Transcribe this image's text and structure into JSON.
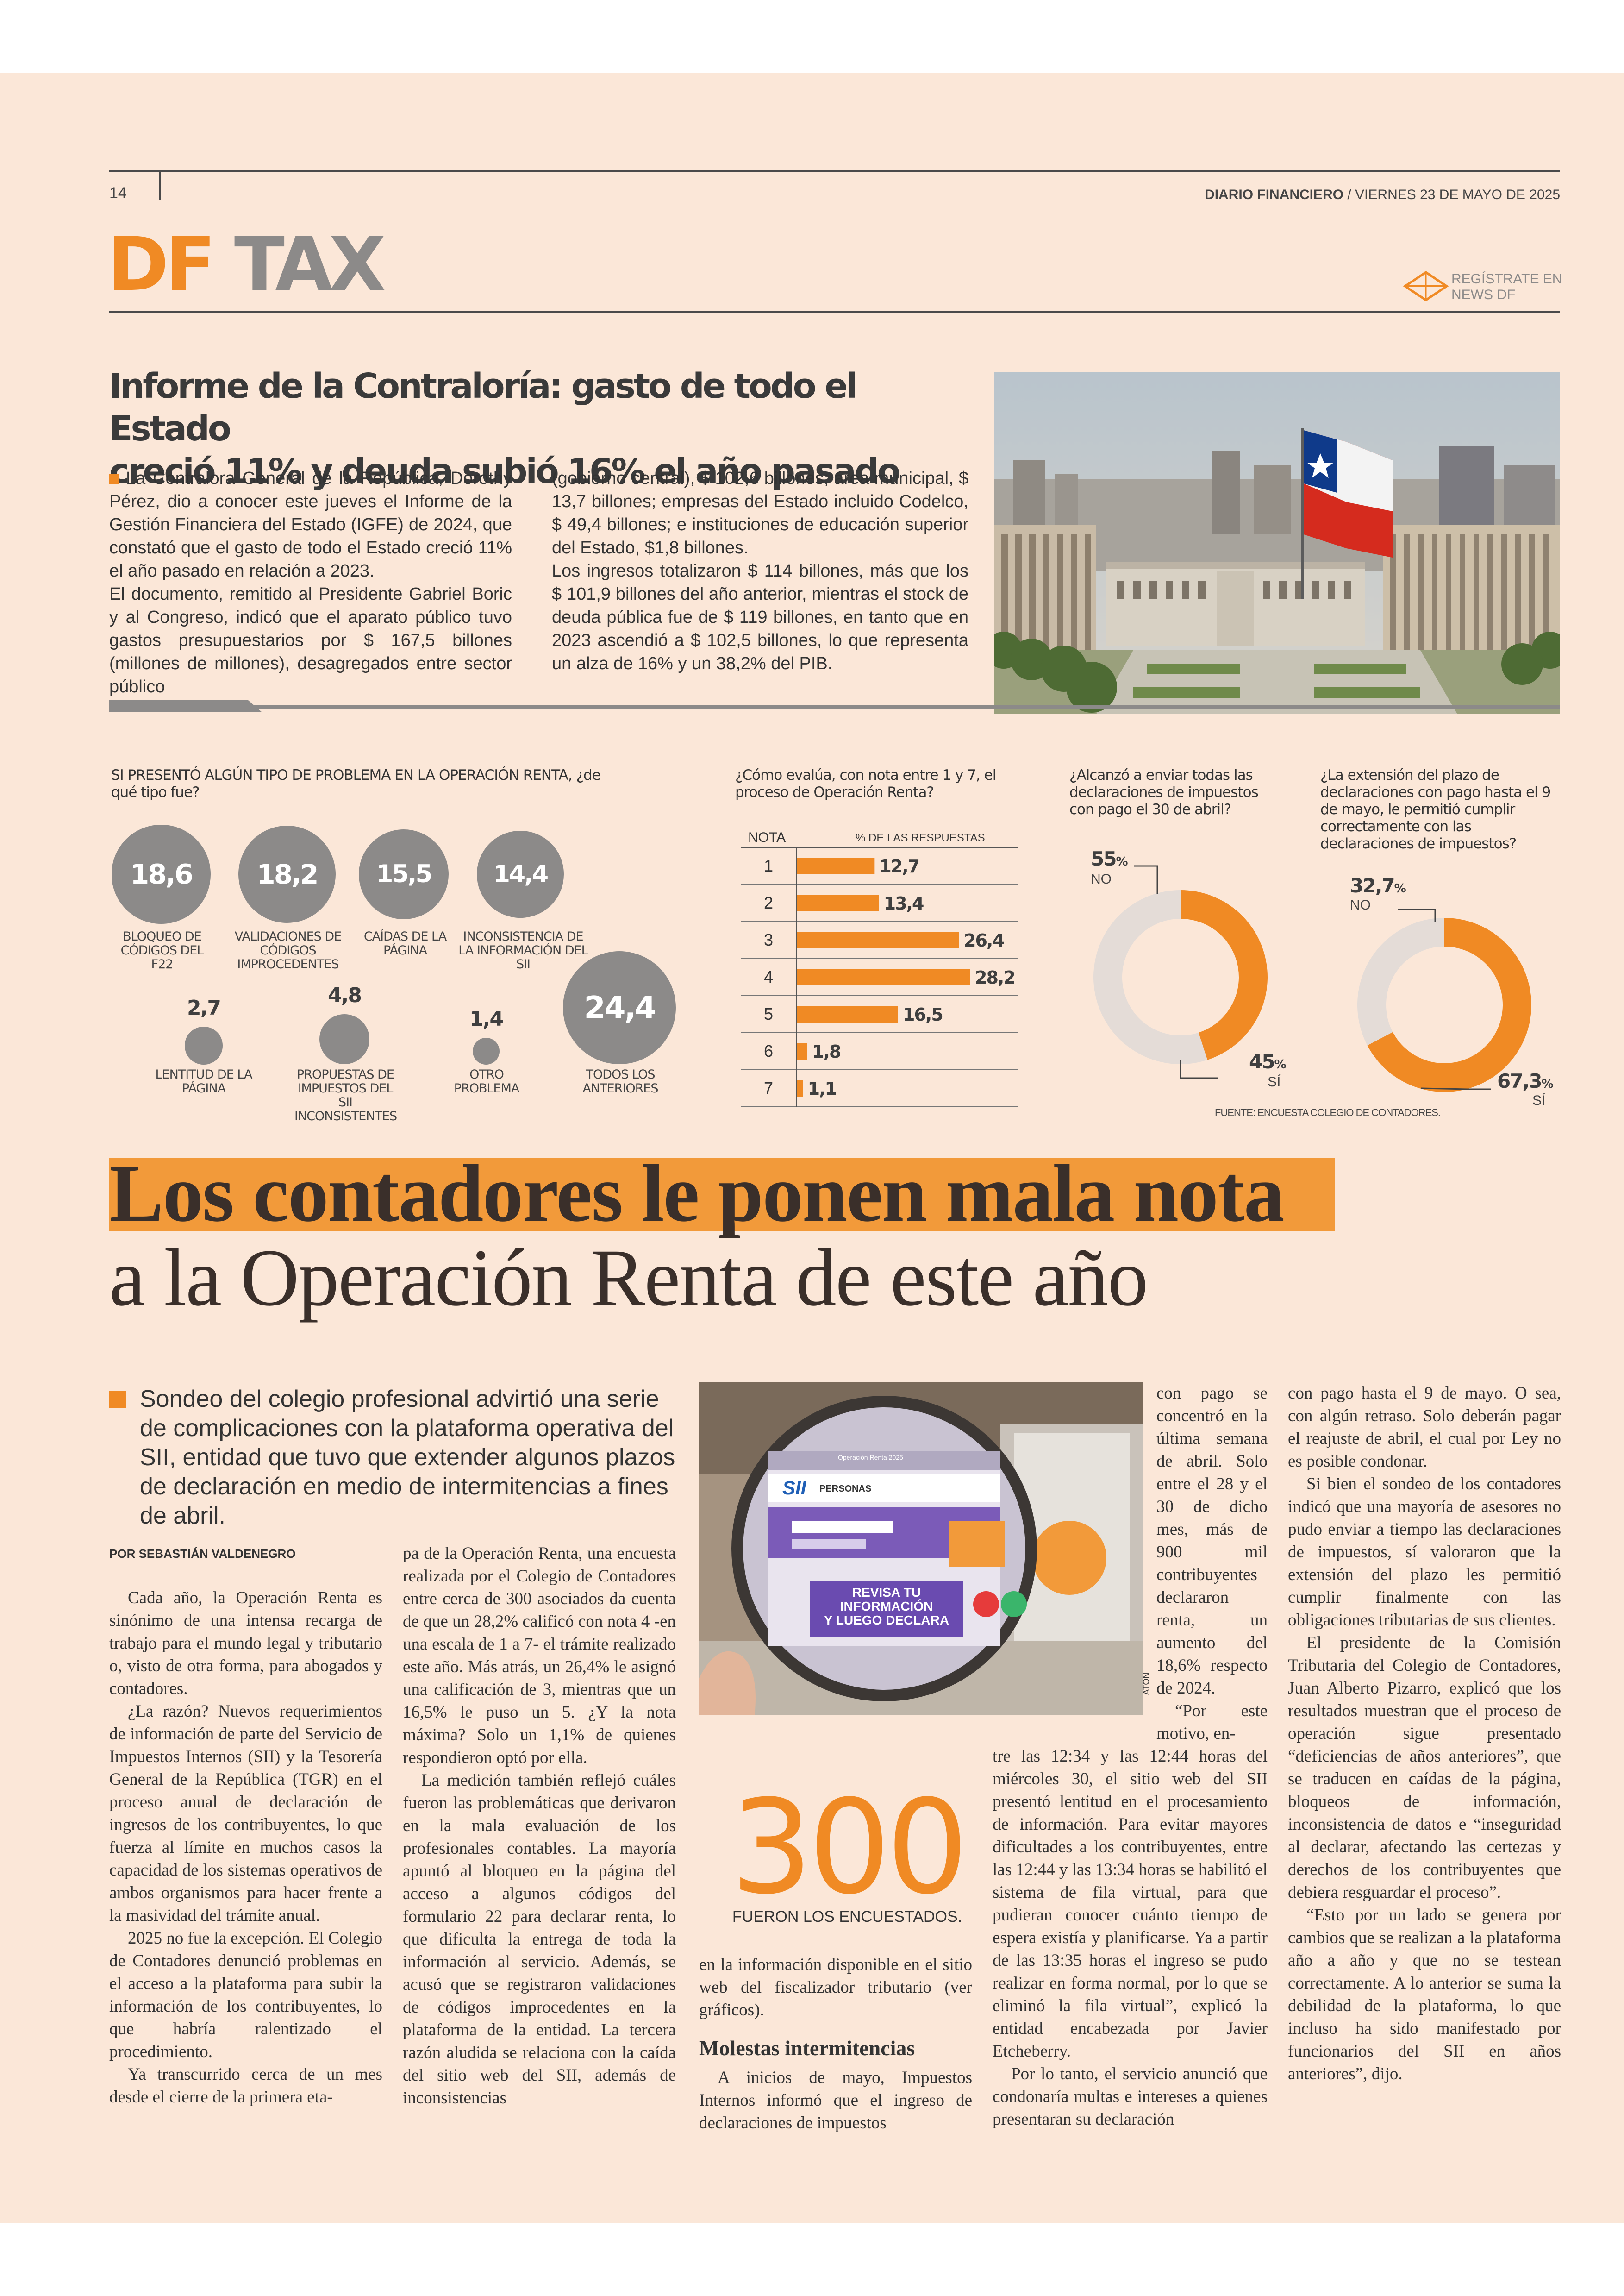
{
  "header": {
    "page_number": "14",
    "publication": "DIARIO FINANCIERO",
    "date": "/ VIERNES 23 DE MAYO DE 2025",
    "section_logo_df": "DF",
    "section_logo_tax": "TAX",
    "register_line1": "REGÍSTRATE EN",
    "register_line2": "NEWS DF"
  },
  "brief": {
    "title_line1": "Informe de la Contraloría: gasto de todo el Estado",
    "title_line2": "creció 11% y deuda subió 16% el año pasado",
    "col1": "La Contralora General de la República, Dorothy Pérez, dio a conocer este jueves el Informe de la Gestión Financiera del Estado (IGFE) de 2024, que constató que el gasto de todo el Estado creció 11% el año pasado en relación a 2023.",
    "col1b": "El documento, remitido al Presidente Gabriel Boric y al Congreso, indicó que el aparato público tuvo gastos presupuestarios por $ 167,5 billones (millones de millones), desagregados entre sector público",
    "col2": "(gobierno central), $ 102,6 billones; área municipal, $ 13,7 billones; empresas del Estado incluido Codelco, $ 49,4 billones; e instituciones de educación superior del Estado, $1,8 billones.",
    "col2b": "Los ingresos totalizaron $ 114 billones, más que los $ 101,9 billones del año anterior, mientras el stock de deuda pública fue de $ 119 billones, en tanto que en 2023 ascendió a $ 102,5 billones, lo que representa un alza de 16% y un 38,2% del PIB."
  },
  "infographic": {
    "problems": {
      "title": "SI PRESENTÓ ALGÚN TIPO DE PROBLEMA EN LA OPERACIÓN RENTA, ¿de qué tipo fue?",
      "items": [
        {
          "value": "18,6",
          "label": "BLOQUEO DE CÓDIGOS DEL F22"
        },
        {
          "value": "18,2",
          "label": "VALIDACIONES DE CÓDIGOS IMPROCEDENTES"
        },
        {
          "value": "15,5",
          "label": "CAÍDAS DE LA PÁGINA"
        },
        {
          "value": "14,4",
          "label": "INCONSISTENCIA DE LA INFORMACIÓN DEL SII"
        },
        {
          "value": "2,7",
          "label": "LENTITUD DE LA PÁGINA"
        },
        {
          "value": "4,8",
          "label": "PROPUESTAS DE IMPUESTOS DEL SII INCONSISTENTES"
        },
        {
          "value": "1,4",
          "label": "OTRO PROBLEMA"
        },
        {
          "value": "24,4",
          "label": "TODOS LOS ANTERIORES"
        }
      ]
    },
    "grades": {
      "title": "¿Cómo evalúa, con nota entre 1 y 7, el proceso de Operación Renta?",
      "col_note": "NOTA",
      "col_pct": "% DE LAS RESPUESTAS"
    },
    "april": {
      "title": "¿Alcanzó a enviar todas las declaraciones de impuestos con pago el 30 de abril?",
      "no_value": "55",
      "no_label": "NO",
      "yes_value": "45",
      "yes_label": "SÍ",
      "pct": "%"
    },
    "extension": {
      "title": "¿La extensión del plazo de declaraciones con pago hasta el 9 de mayo, le permitió cumplir correctamente con las declaraciones de impuestos?",
      "no_value": "32,7",
      "no_label": "NO",
      "yes_value": "67,3",
      "yes_label": "SÍ",
      "pct": "%"
    },
    "source": "FUENTE: ENCUESTA COLEGIO DE CONTADORES."
  },
  "chart_data": [
    {
      "type": "bar",
      "title": "¿Cómo evalúa, con nota entre 1 y 7, el proceso de Operación Renta?",
      "categories": [
        "1",
        "2",
        "3",
        "4",
        "5",
        "6",
        "7"
      ],
      "values": [
        12.7,
        13.4,
        26.4,
        28.2,
        16.5,
        1.8,
        1.1
      ],
      "value_labels": [
        "12,7",
        "13,4",
        "26,4",
        "28,2",
        "16,5",
        "1,8",
        "1,1"
      ],
      "orientation": "horizontal",
      "xlabel": "% DE LAS RESPUESTAS",
      "ylabel": "NOTA",
      "color": "#f08a24"
    },
    {
      "type": "pie",
      "title": "¿Alcanzó a enviar todas las declaraciones de impuestos con pago el 30 de abril?",
      "labels": [
        "NO",
        "SÍ"
      ],
      "values": [
        55,
        45
      ],
      "colors": [
        "#e4dcd7",
        "#f08a24"
      ]
    },
    {
      "type": "pie",
      "title": "¿La extensión del plazo de declaraciones con pago hasta el 9 de mayo, le permitió cumplir correctamente con las declaraciones de impuestos?",
      "labels": [
        "NO",
        "SÍ"
      ],
      "values": [
        32.7,
        67.3
      ],
      "colors": [
        "#e4dcd7",
        "#f08a24"
      ]
    }
  ],
  "article": {
    "headline1": "Los contadores le ponen mala nota",
    "headline2": "a la Operación Renta de este año",
    "deck": "Sondeo del colegio profesional advirtió una serie de complicaciones con la plataforma operativa del SII, entidad que tuvo que extender algunos plazos de declaración en medio de intermitencias a fines de abril.",
    "byline": "POR SEBASTIÁN VALDENEGRO",
    "col1": [
      "Cada año, la Operación Renta es sinónimo de una intensa recarga de trabajo para el mundo legal y tributario o, visto de otra forma, para abogados y contadores.",
      "¿La razón? Nuevos requerimientos de información de parte del Servicio de Impuestos Internos (SII) y la Tesorería General de la República (TGR) en el proceso anual de declaración de ingresos de los contribuyentes, lo que fuerza al límite en muchos casos la capacidad de los sistemas operativos de ambos organismos para hacer frente a la masividad del trámite anual.",
      "2025 no fue la excepción. El Colegio de Contadores denunció problemas en el acceso a la plataforma para subir la información de los contribuyentes, lo que habría ralentizado el procedimiento.",
      "Ya transcurrido cerca de un mes desde el cierre de la primera eta-"
    ],
    "col2": [
      "pa de la Operación Renta, una encuesta realizada por el Colegio de Contadores entre cerca de 300 asociados da cuenta de que un 28,2% calificó con nota 4 -en una escala de 1 a 7- el trámite realizado este año. Más atrás, un 26,4% le asignó una calificación de 3, mientras que un 16,5% le puso un 5. ¿Y la nota máxima? Solo un 1,1% de quienes respondieron optó por ella.",
      "La medición también reflejó cuáles fueron las problemáticas que derivaron en la mala evaluación de los profesionales contables. La mayoría apuntó al bloqueo en la página del acceso a algunos códigos del formulario 22 para declarar renta, lo que dificulta la entrega de toda la información al servicio. Además, se acusó que se registraron validaciones de códigos improcedentes en la plataforma de la entidad. La tercera razón aludida se relaciona con la caída del sitio web del SII, además de inconsistencias"
    ],
    "col3": "en la información disponible en el sitio web del fiscalizador tributario (ver gráficos).",
    "subhead": "Molestas intermitencias",
    "col3b": "A inicios de mayo, Impuestos Internos informó que el ingreso de declaraciones de impuestos",
    "col4a": "con pago se concentró en la última semana de abril. Solo entre el 28 y el 30 de dicho mes, más de 900 mil contribuyentes declararon renta, un aumento del 18,6% respecto de 2024.",
    "col4a2": "“Por este motivo, en-",
    "col4": [
      "tre las 12:34 y las 12:44 horas del miércoles 30, el sitio web del SII presentó lentitud en el procesamiento de información. Para evitar mayores dificultades a los contribuyentes, entre las 12:44 y las 13:34 horas se habilitó el sistema de fila virtual, para que pudieran conocer cuánto tiempo de espera existía y planificarse. Ya a partir de las 13:35 horas el ingreso se pudo realizar en forma normal, por lo que se eliminó la fila virtual”, explicó la entidad encabezada por Javier Etcheberry.",
      "Por lo tanto, el servicio anunció que condonaría multas e intereses a quienes presentaran su declaración"
    ],
    "col5": [
      "con pago hasta el 9 de mayo. O sea, con algún retraso. Solo deberán pagar el reajuste de abril, el cual por Ley no es posible condonar.",
      "Si bien el sondeo de los contadores indicó que una mayoría de asesores no pudo enviar a tiempo las declaraciones de impuestos, sí valoraron que la extensión del plazo les permitió cumplir finalmente con las obligaciones tributarias de sus clientes.",
      "El presidente de la Comisión Tributaria del Colegio de Contadores, Juan Alberto Pizarro, explicó que los resultados muestran que el proceso de operación sigue presentado “deficiencias de años anteriores”, que se traducen en caídas de la página, bloqueos de información, inconsistencia de datos e “inseguridad al declarar, afectando las certezas y derechos de los contribuyentes que debiera resguardar el proceso”.",
      "“Esto por un lado se genera por cambios que se realizan a la plataforma año a año y que no se testean correctamente. A lo anterior se suma la debilidad de la plataforma, lo que incluso ha sido manifestado por funcionarios del SII en años anteriores”, dijo."
    ],
    "stat_number": "300",
    "stat_label": "FUERON LOS ENCUESTADOS.",
    "photo_credit": "ATON",
    "screen_texts": {
      "tab": "Operación Renta 2025",
      "sii": "SII",
      "personas": "PERSONAS",
      "banner_line1": "REVISA TU",
      "banner_line2": "INFORMACIÓN",
      "banner_line3": "Y LUEGO DECLARA"
    }
  }
}
